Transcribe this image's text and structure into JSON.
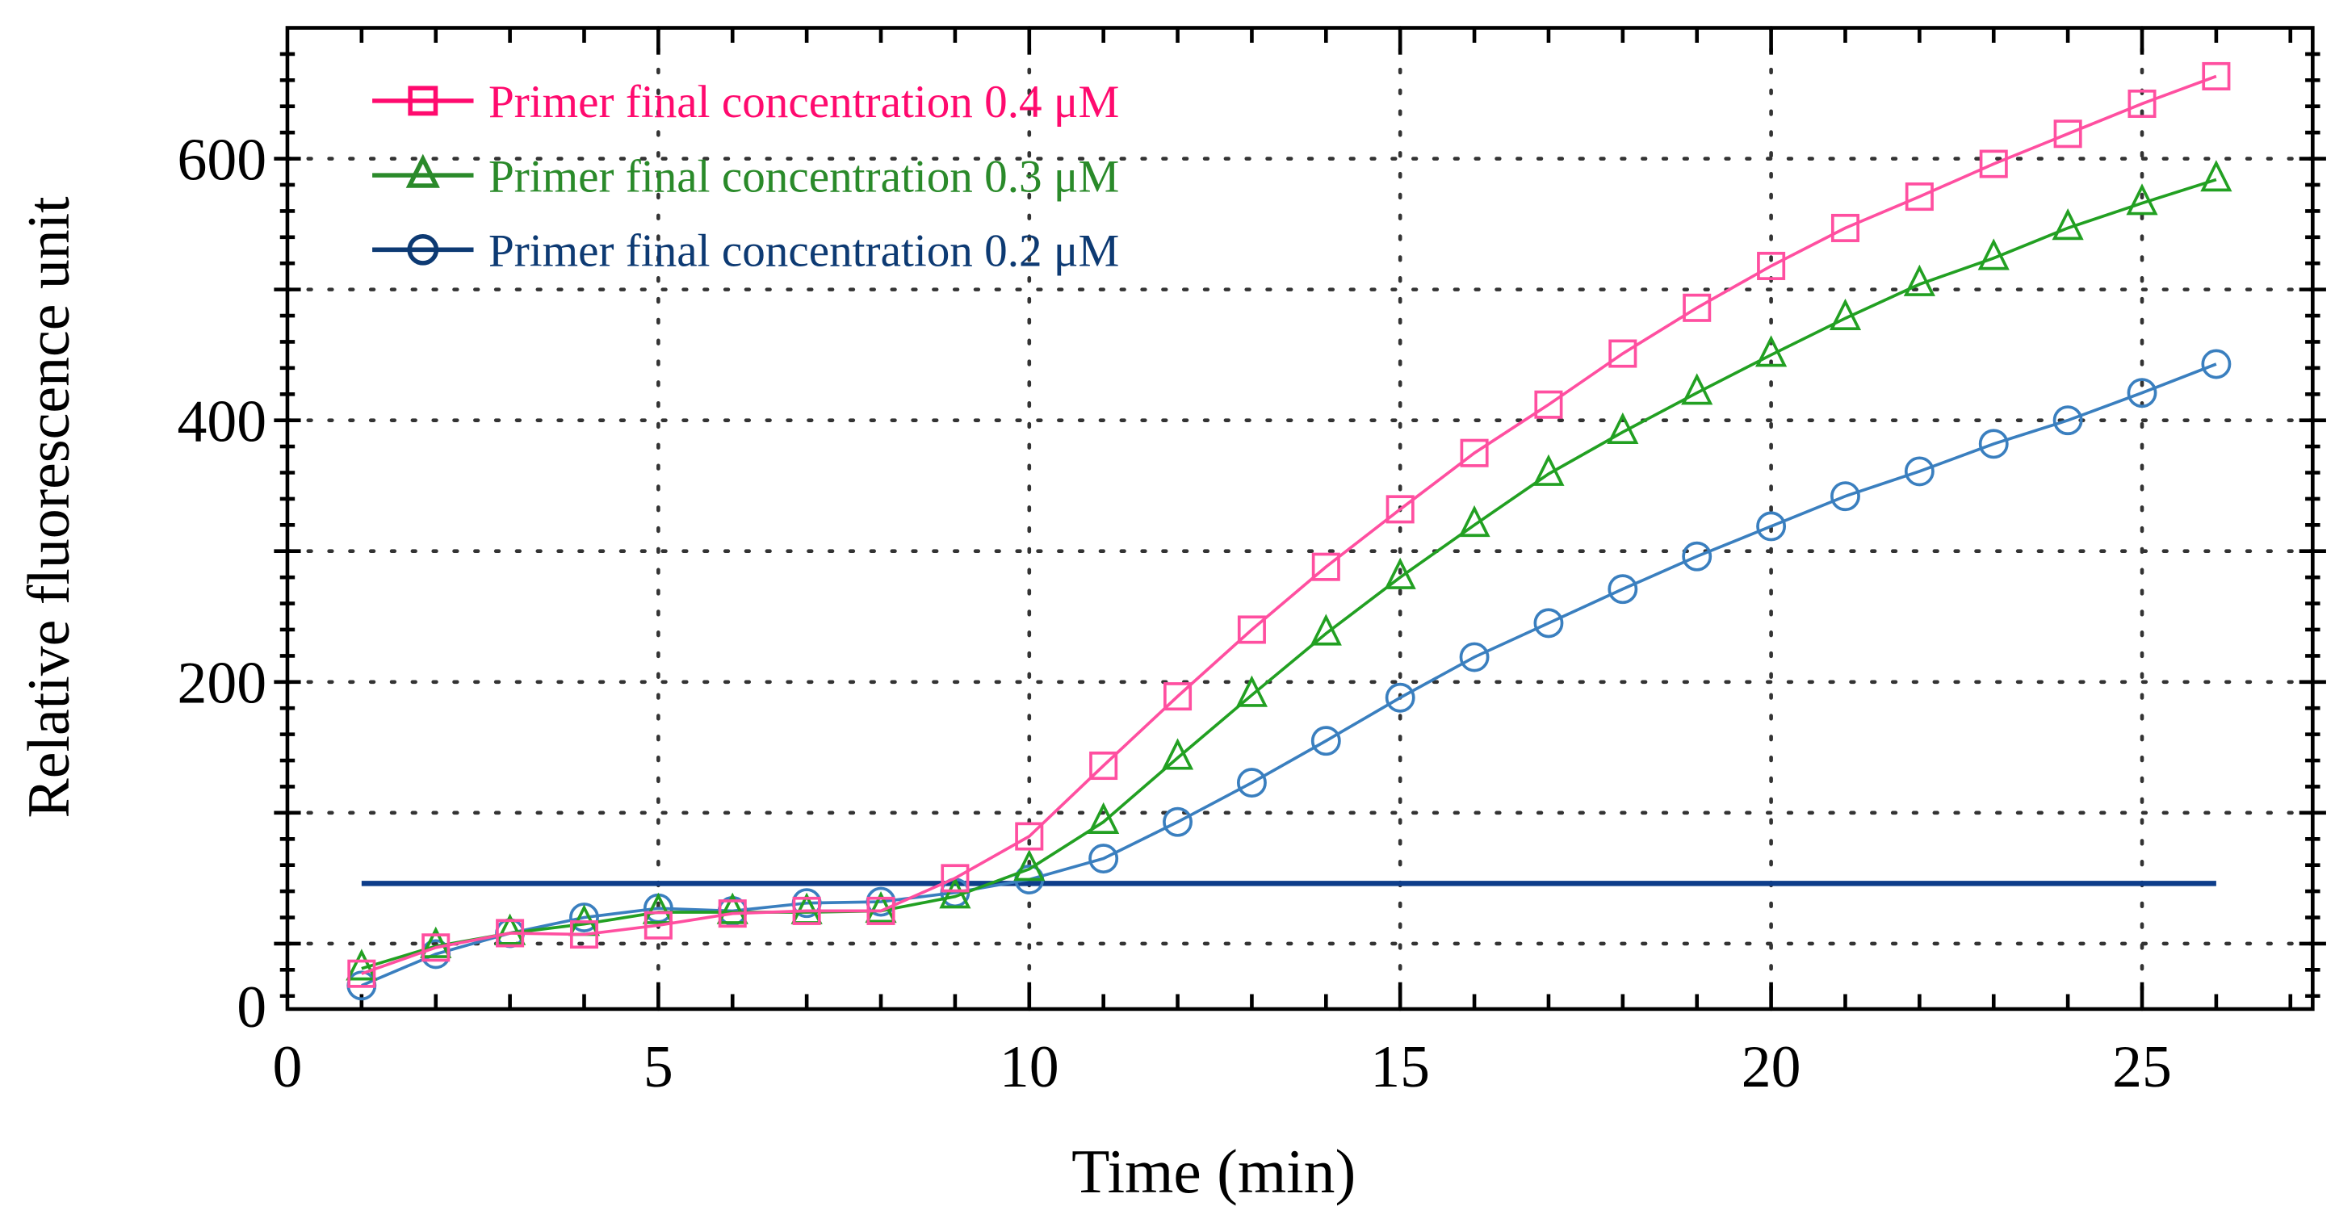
{
  "chart_data": {
    "type": "line",
    "title": "",
    "xlabel": "Time (min)",
    "ylabel": "Relative fluorescence unit",
    "xlim": [
      0,
      27.3
    ],
    "ylim": [
      -50,
      700
    ],
    "xticks": [
      0,
      5,
      10,
      15,
      20,
      25
    ],
    "yticks": [
      0,
      200,
      400,
      600
    ],
    "grid": true,
    "legend_position": "top-left",
    "x": [
      1,
      2,
      3,
      4,
      5,
      6,
      7,
      8,
      9,
      10,
      11,
      12,
      13,
      14,
      15,
      16,
      17,
      18,
      19,
      20,
      21,
      22,
      23,
      24,
      25,
      26
    ],
    "series": [
      {
        "name": "Primer final concentration 0.4 μM",
        "marker": "square",
        "color": "#ff4fa0",
        "legend_color": "#ff0a6e",
        "values": [
          -23,
          -3,
          8,
          7,
          14,
          23,
          25,
          25,
          50,
          82,
          136,
          189,
          240,
          288,
          332,
          375,
          412,
          451,
          486,
          518,
          547,
          571,
          596,
          619,
          642,
          663
        ]
      },
      {
        "name": "Primer final concentration 0.3 μM",
        "marker": "triangle",
        "color": "#22a022",
        "legend_color": "#2a8a2a",
        "values": [
          -19,
          -2,
          8,
          15,
          24,
          24,
          24,
          25,
          36,
          57,
          93,
          142,
          190,
          237,
          280,
          320,
          359,
          391,
          421,
          450,
          478,
          504,
          524,
          547,
          566,
          584
        ]
      },
      {
        "name": "Primer final concentration 0.2 μM",
        "marker": "circle",
        "color": "#3a7fbf",
        "legend_color": "#0d3a73",
        "values": [
          -32,
          -8,
          8,
          20,
          27,
          25,
          31,
          32,
          39,
          49,
          65,
          93,
          123,
          155,
          188,
          219,
          245,
          271,
          296,
          319,
          342,
          361,
          382,
          400,
          421,
          443
        ]
      }
    ],
    "threshold": {
      "x": [
        1,
        26
      ],
      "y": 46,
      "color": "#0d3d8a"
    }
  }
}
